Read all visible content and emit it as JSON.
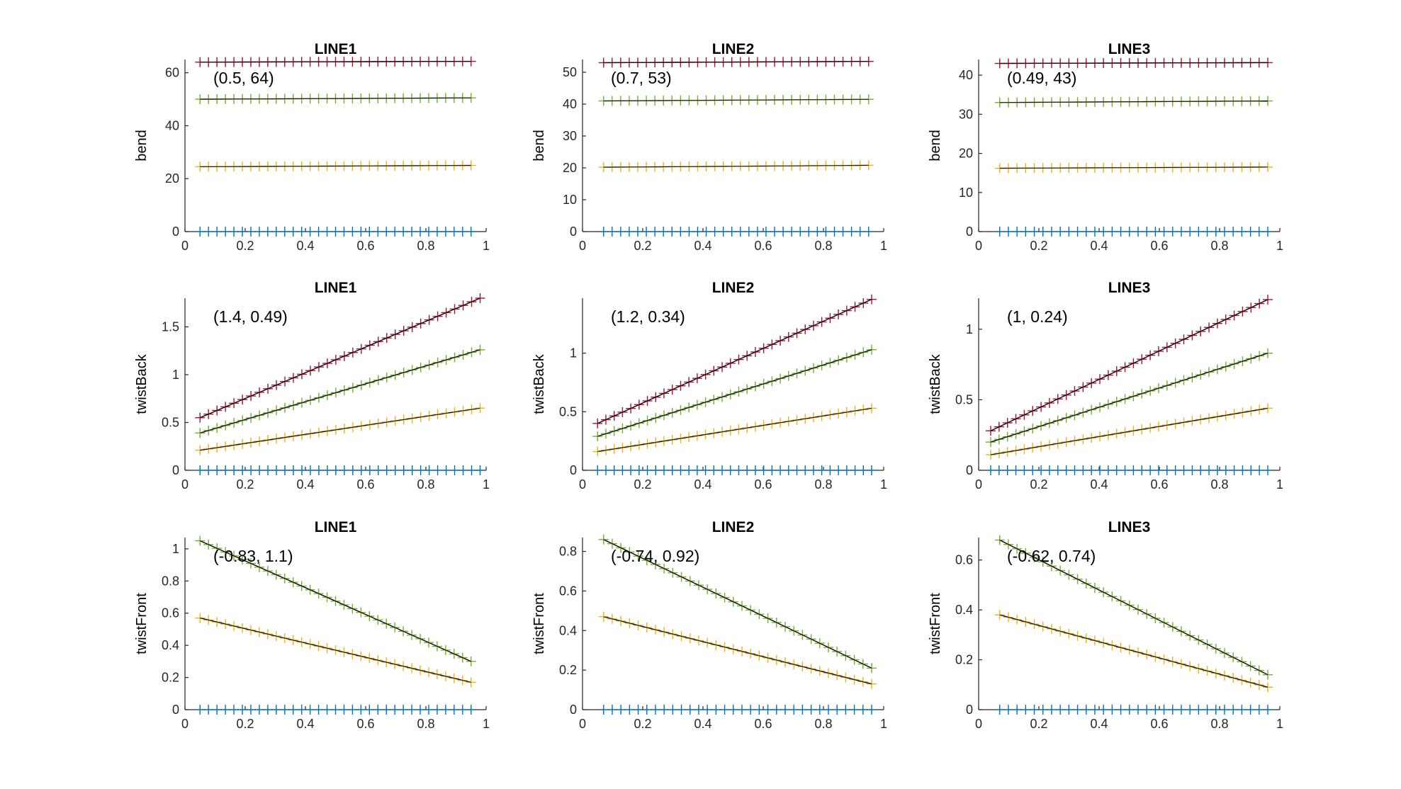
{
  "figure": {
    "colors": {
      "series1": "#0072BD",
      "series2": "#EDB120",
      "series3": "#77AC30",
      "series4": "#A2142F",
      "fit": "#000000"
    }
  },
  "chart_data": [
    {
      "type": "scatter",
      "title": "LINE1",
      "ylabel": "bend",
      "xlabel": "",
      "annotation": "(0.5, 64)",
      "xlim": [
        0,
        1
      ],
      "ylim": [
        0,
        65
      ],
      "xticks": [
        0,
        0.2,
        0.4,
        0.6,
        0.8,
        1
      ],
      "xtick_labels": [
        "0",
        "0.2",
        "0.4",
        "0.6",
        "0.8",
        "1"
      ],
      "yticks": [
        0,
        20,
        40,
        60
      ],
      "ytick_labels": [
        "0",
        "20",
        "40",
        "60"
      ],
      "series": [
        {
          "x0": 0.05,
          "x1": 0.95,
          "n": 33,
          "y0": 0,
          "y1": 0,
          "fit": false
        },
        {
          "x0": 0.05,
          "x1": 0.95,
          "n": 33,
          "y0": 24.5,
          "y1": 25,
          "fit": true
        },
        {
          "x0": 0.05,
          "x1": 0.95,
          "n": 33,
          "y0": 50,
          "y1": 50.5,
          "fit": true
        },
        {
          "x0": 0.05,
          "x1": 0.95,
          "n": 33,
          "y0": 64,
          "y1": 64.3,
          "fit": true
        }
      ]
    },
    {
      "type": "scatter",
      "title": "LINE2",
      "ylabel": "bend",
      "xlabel": "",
      "annotation": "(0.7, 53)",
      "xlim": [
        0,
        1
      ],
      "ylim": [
        0,
        54
      ],
      "xticks": [
        0,
        0.2,
        0.4,
        0.6,
        0.8,
        1
      ],
      "xtick_labels": [
        "0",
        "0.2",
        "0.4",
        "0.6",
        "0.8",
        "1"
      ],
      "yticks": [
        0,
        10,
        20,
        30,
        40,
        50
      ],
      "ytick_labels": [
        "0",
        "10",
        "20",
        "30",
        "40",
        "50"
      ],
      "series": [
        {
          "x0": 0.07,
          "x1": 0.95,
          "n": 32,
          "y0": 0,
          "y1": 0,
          "fit": false
        },
        {
          "x0": 0.07,
          "x1": 0.95,
          "n": 32,
          "y0": 20.2,
          "y1": 20.8,
          "fit": true
        },
        {
          "x0": 0.07,
          "x1": 0.95,
          "n": 32,
          "y0": 41,
          "y1": 41.5,
          "fit": true
        },
        {
          "x0": 0.07,
          "x1": 0.95,
          "n": 32,
          "y0": 53,
          "y1": 53.4,
          "fit": true
        }
      ]
    },
    {
      "type": "scatter",
      "title": "LINE3",
      "ylabel": "bend",
      "xlabel": "",
      "annotation": "(0.49, 43)",
      "xlim": [
        0,
        1
      ],
      "ylim": [
        0,
        44
      ],
      "xticks": [
        0,
        0.2,
        0.4,
        0.6,
        0.8,
        1
      ],
      "xtick_labels": [
        "0",
        "0.2",
        "0.4",
        "0.6",
        "0.8",
        "1"
      ],
      "yticks": [
        0,
        10,
        20,
        30,
        40
      ],
      "ytick_labels": [
        "0",
        "10",
        "20",
        "30",
        "40"
      ],
      "series": [
        {
          "x0": 0.07,
          "x1": 0.96,
          "n": 32,
          "y0": 0,
          "y1": 0,
          "fit": false
        },
        {
          "x0": 0.07,
          "x1": 0.96,
          "n": 32,
          "y0": 16.2,
          "y1": 16.5,
          "fit": true
        },
        {
          "x0": 0.07,
          "x1": 0.96,
          "n": 32,
          "y0": 33,
          "y1": 33.4,
          "fit": true
        },
        {
          "x0": 0.07,
          "x1": 0.96,
          "n": 32,
          "y0": 43,
          "y1": 43.2,
          "fit": true
        }
      ]
    },
    {
      "type": "scatter",
      "title": "LINE1",
      "ylabel": "twistBack",
      "xlabel": "",
      "annotation": "(1.4, 0.49)",
      "xlim": [
        0,
        1
      ],
      "ylim": [
        0,
        1.8
      ],
      "xticks": [
        0,
        0.2,
        0.4,
        0.6,
        0.8,
        1
      ],
      "xtick_labels": [
        "0",
        "0.2",
        "0.4",
        "0.6",
        "0.8",
        "1"
      ],
      "yticks": [
        0,
        0.5,
        1,
        1.5
      ],
      "ytick_labels": [
        "0",
        "0.5",
        "1",
        "1.5"
      ],
      "series": [
        {
          "x0": 0.05,
          "x1": 0.98,
          "n": 34,
          "y0": 0,
          "y1": 0,
          "fit": false
        },
        {
          "x0": 0.05,
          "x1": 0.98,
          "n": 34,
          "y0": 0.21,
          "y1": 0.65,
          "fit": true
        },
        {
          "x0": 0.05,
          "x1": 0.98,
          "n": 34,
          "y0": 0.39,
          "y1": 1.26,
          "fit": true
        },
        {
          "x0": 0.05,
          "x1": 0.98,
          "n": 34,
          "y0": 0.55,
          "y1": 1.8,
          "fit": true
        }
      ]
    },
    {
      "type": "scatter",
      "title": "LINE2",
      "ylabel": "twistBack",
      "xlabel": "",
      "annotation": "(1.2, 0.34)",
      "xlim": [
        0,
        1
      ],
      "ylim": [
        0,
        1.47
      ],
      "xticks": [
        0,
        0.2,
        0.4,
        0.6,
        0.8,
        1
      ],
      "xtick_labels": [
        "0",
        "0.2",
        "0.4",
        "0.6",
        "0.8",
        "1"
      ],
      "yticks": [
        0,
        0.5,
        1
      ],
      "ytick_labels": [
        "0",
        "0.5",
        "1"
      ],
      "series": [
        {
          "x0": 0.05,
          "x1": 0.96,
          "n": 34,
          "y0": 0,
          "y1": 0,
          "fit": false
        },
        {
          "x0": 0.05,
          "x1": 0.96,
          "n": 34,
          "y0": 0.16,
          "y1": 0.53,
          "fit": true
        },
        {
          "x0": 0.05,
          "x1": 0.96,
          "n": 34,
          "y0": 0.29,
          "y1": 1.03,
          "fit": true
        },
        {
          "x0": 0.05,
          "x1": 0.96,
          "n": 34,
          "y0": 0.4,
          "y1": 1.46,
          "fit": true
        }
      ]
    },
    {
      "type": "scatter",
      "title": "LINE3",
      "ylabel": "twistBack",
      "xlabel": "",
      "annotation": "(1, 0.24)",
      "xlim": [
        0,
        1
      ],
      "ylim": [
        0,
        1.22
      ],
      "xticks": [
        0,
        0.2,
        0.4,
        0.6,
        0.8,
        1
      ],
      "xtick_labels": [
        "0",
        "0.2",
        "0.4",
        "0.6",
        "0.8",
        "1"
      ],
      "yticks": [
        0,
        0.5,
        1
      ],
      "ytick_labels": [
        "0",
        "0.5",
        "1"
      ],
      "series": [
        {
          "x0": 0.04,
          "x1": 0.96,
          "n": 34,
          "y0": 0,
          "y1": 0,
          "fit": false
        },
        {
          "x0": 0.04,
          "x1": 0.96,
          "n": 34,
          "y0": 0.11,
          "y1": 0.44,
          "fit": true
        },
        {
          "x0": 0.04,
          "x1": 0.96,
          "n": 34,
          "y0": 0.2,
          "y1": 0.83,
          "fit": true
        },
        {
          "x0": 0.04,
          "x1": 0.96,
          "n": 34,
          "y0": 0.28,
          "y1": 1.21,
          "fit": true
        }
      ]
    },
    {
      "type": "scatter",
      "title": "LINE1",
      "ylabel": "twistFront",
      "xlabel": "",
      "annotation": "(-0.83, 1.1)",
      "xlim": [
        0,
        1
      ],
      "ylim": [
        0,
        1.07
      ],
      "xticks": [
        0,
        0.2,
        0.4,
        0.6,
        0.8,
        1
      ],
      "xtick_labels": [
        "0",
        "0.2",
        "0.4",
        "0.6",
        "0.8",
        "1"
      ],
      "yticks": [
        0,
        0.2,
        0.4,
        0.6,
        0.8,
        1
      ],
      "ytick_labels": [
        "0",
        "0.2",
        "0.4",
        "0.6",
        "0.8",
        "1"
      ],
      "series": [
        {
          "x0": 0.05,
          "x1": 0.95,
          "n": 33,
          "y0": 0,
          "y1": 0,
          "fit": false
        },
        {
          "x0": 0.05,
          "x1": 0.95,
          "n": 33,
          "y0": 0.57,
          "y1": 0.17,
          "fit": true
        },
        {
          "x0": 0.05,
          "x1": 0.95,
          "n": 33,
          "y0": 1.05,
          "y1": 0.3,
          "fit": true
        }
      ]
    },
    {
      "type": "scatter",
      "title": "LINE2",
      "ylabel": "twistFront",
      "xlabel": "",
      "annotation": "(-0.74, 0.92)",
      "xlim": [
        0,
        1
      ],
      "ylim": [
        0,
        0.87
      ],
      "xticks": [
        0,
        0.2,
        0.4,
        0.6,
        0.8,
        1
      ],
      "xtick_labels": [
        "0",
        "0.2",
        "0.4",
        "0.6",
        "0.8",
        "1"
      ],
      "yticks": [
        0,
        0.2,
        0.4,
        0.6,
        0.8
      ],
      "ytick_labels": [
        "0",
        "0.2",
        "0.4",
        "0.6",
        "0.8"
      ],
      "series": [
        {
          "x0": 0.07,
          "x1": 0.96,
          "n": 32,
          "y0": 0,
          "y1": 0,
          "fit": false
        },
        {
          "x0": 0.07,
          "x1": 0.96,
          "n": 32,
          "y0": 0.47,
          "y1": 0.13,
          "fit": true
        },
        {
          "x0": 0.07,
          "x1": 0.96,
          "n": 32,
          "y0": 0.86,
          "y1": 0.21,
          "fit": true
        }
      ]
    },
    {
      "type": "scatter",
      "title": "LINE3",
      "ylabel": "twistFront",
      "xlabel": "",
      "annotation": "(-0.62, 0.74)",
      "xlim": [
        0,
        1
      ],
      "ylim": [
        0,
        0.69
      ],
      "xticks": [
        0,
        0.2,
        0.4,
        0.6,
        0.8,
        1
      ],
      "xtick_labels": [
        "0",
        "0.2",
        "0.4",
        "0.6",
        "0.8",
        "1"
      ],
      "yticks": [
        0,
        0.2,
        0.4,
        0.6
      ],
      "ytick_labels": [
        "0",
        "0.2",
        "0.4",
        "0.6"
      ],
      "series": [
        {
          "x0": 0.07,
          "x1": 0.96,
          "n": 32,
          "y0": 0,
          "y1": 0,
          "fit": false
        },
        {
          "x0": 0.07,
          "x1": 0.96,
          "n": 32,
          "y0": 0.38,
          "y1": 0.09,
          "fit": true
        },
        {
          "x0": 0.07,
          "x1": 0.96,
          "n": 32,
          "y0": 0.68,
          "y1": 0.14,
          "fit": true
        }
      ]
    }
  ]
}
